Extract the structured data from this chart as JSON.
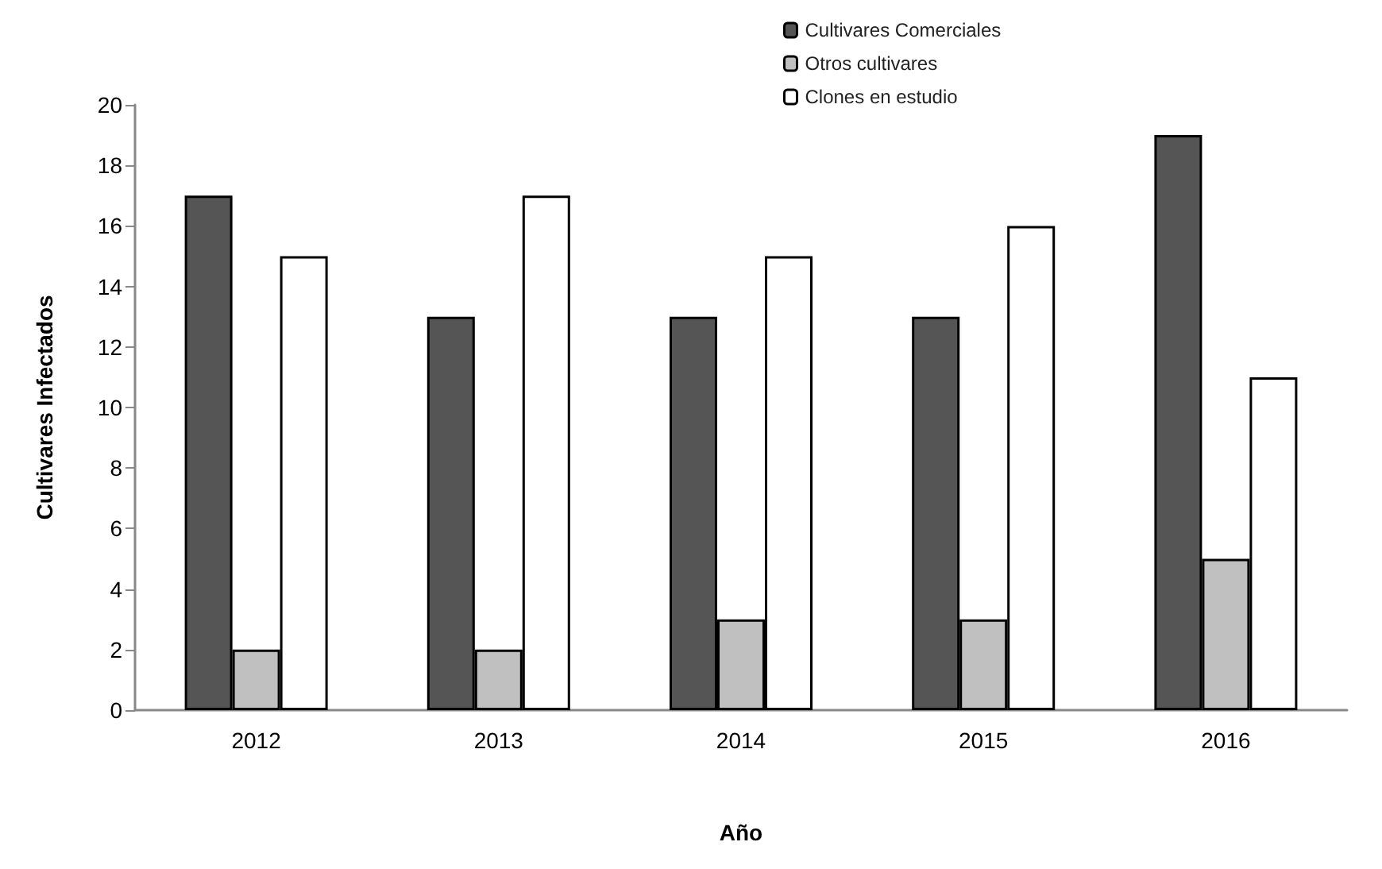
{
  "chart_data": {
    "type": "bar",
    "xlabel": "Año",
    "ylabel": "Cultivares Infectados",
    "categories": [
      "2012",
      "2013",
      "2014",
      "2015",
      "2016"
    ],
    "series": [
      {
        "name": "Cultivares Comerciales",
        "color": "#555555",
        "values": [
          17,
          13,
          13,
          13,
          19
        ]
      },
      {
        "name": "Otros cultivares",
        "color": "#c0c0c0",
        "values": [
          2,
          2,
          3,
          3,
          5
        ]
      },
      {
        "name": "Clones en estudio",
        "color": "#ffffff",
        "values": [
          15,
          17,
          15,
          16,
          11
        ]
      }
    ],
    "ylim": [
      0,
      20
    ],
    "yticks": [
      0,
      2,
      4,
      6,
      8,
      10,
      12,
      14,
      16,
      18,
      20
    ],
    "grid": false,
    "legend": "top right"
  }
}
